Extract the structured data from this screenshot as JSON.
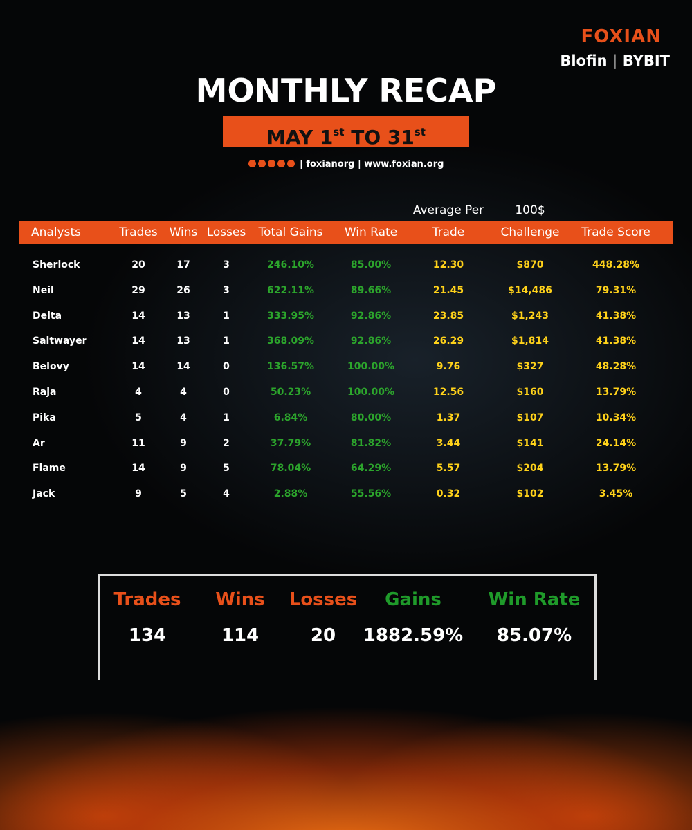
{
  "brand": {
    "name": "FOXIAN",
    "partners": [
      "Blofin",
      "BYBIT"
    ]
  },
  "header": {
    "title": "MONTHLY RECAP",
    "date": {
      "month": "MAY",
      "start": "1",
      "start_suffix": "st",
      "joiner": "TO",
      "end": "31",
      "end_suffix": "st"
    },
    "social": {
      "handle": "foxianorg",
      "website": "www.foxian.org"
    }
  },
  "table": {
    "group_headers": [
      "Average Per",
      "100$"
    ],
    "columns": [
      "Analysts",
      "Trades",
      "Wins",
      "Losses",
      "Total Gains",
      "Win Rate",
      "Trade",
      "Challenge",
      "Trade Score"
    ],
    "rows": [
      [
        "Sherlock",
        "20",
        "17",
        "3",
        "246.10%",
        "85.00%",
        "12.30",
        "$870",
        "448.28%"
      ],
      [
        "Neil",
        "29",
        "26",
        "3",
        "622.11%",
        "89.66%",
        "21.45",
        "$14,486",
        "79.31%"
      ],
      [
        "Delta",
        "14",
        "13",
        "1",
        "333.95%",
        "92.86%",
        "23.85",
        "$1,243",
        "41.38%"
      ],
      [
        "Saltwayer",
        "14",
        "13",
        "1",
        "368.09%",
        "92.86%",
        "26.29",
        "$1,814",
        "41.38%"
      ],
      [
        "Belovy",
        "14",
        "14",
        "0",
        "136.57%",
        "100.00%",
        "9.76",
        "$327",
        "48.28%"
      ],
      [
        "Raja",
        "4",
        "4",
        "0",
        "50.23%",
        "100.00%",
        "12.56",
        "$160",
        "13.79%"
      ],
      [
        "Pika",
        "5",
        "4",
        "1",
        "6.84%",
        "80.00%",
        "1.37",
        "$107",
        "10.34%"
      ],
      [
        "Ar",
        "11",
        "9",
        "2",
        "37.79%",
        "81.82%",
        "3.44",
        "$141",
        "24.14%"
      ],
      [
        "Flame",
        "14",
        "9",
        "5",
        "78.04%",
        "64.29%",
        "5.57",
        "$204",
        "13.79%"
      ],
      [
        "Jack",
        "9",
        "5",
        "4",
        "2.88%",
        "55.56%",
        "0.32",
        "$102",
        "3.45%"
      ]
    ]
  },
  "summary": {
    "labels": [
      "Trades",
      "Wins",
      "Losses",
      "Gains",
      "Win Rate"
    ],
    "values": [
      "134",
      "114",
      "20",
      "1882.59%",
      "85.07%"
    ]
  }
}
